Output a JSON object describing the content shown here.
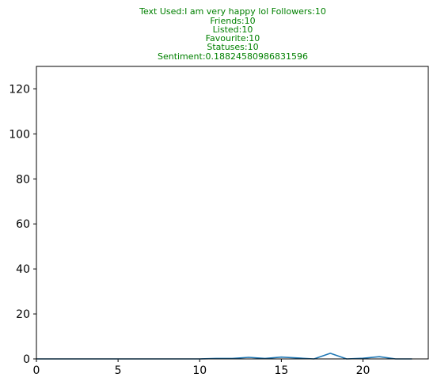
{
  "chart_data": {
    "type": "line",
    "title_lines": [
      "Text Used:I am very happy lol Followers:10",
      "Friends:10",
      "Listed:10",
      "Favourite:10",
      "Statuses:10",
      "Sentiment:0.18824580986831596"
    ],
    "title_color": "#008000",
    "xlabel": "",
    "ylabel": "",
    "xlim": [
      0,
      24
    ],
    "ylim": [
      0,
      130
    ],
    "xticks": [
      0,
      5,
      10,
      15,
      20
    ],
    "yticks": [
      0,
      20,
      40,
      60,
      80,
      100,
      120
    ],
    "grid": false,
    "legend": "none",
    "series": [
      {
        "color": "#1f77b4",
        "x": [
          0,
          1,
          2,
          3,
          4,
          5,
          6,
          7,
          8,
          9,
          10,
          11,
          12,
          13,
          14,
          15,
          16,
          17,
          18,
          19,
          20,
          21,
          22,
          23
        ],
        "y": [
          0,
          0,
          0,
          0,
          0,
          0,
          0,
          0,
          0,
          0,
          0,
          0.2,
          0.2,
          0.7,
          0.2,
          0.8,
          0.4,
          0,
          2.5,
          0,
          0.3,
          1.0,
          0,
          0
        ]
      }
    ]
  }
}
